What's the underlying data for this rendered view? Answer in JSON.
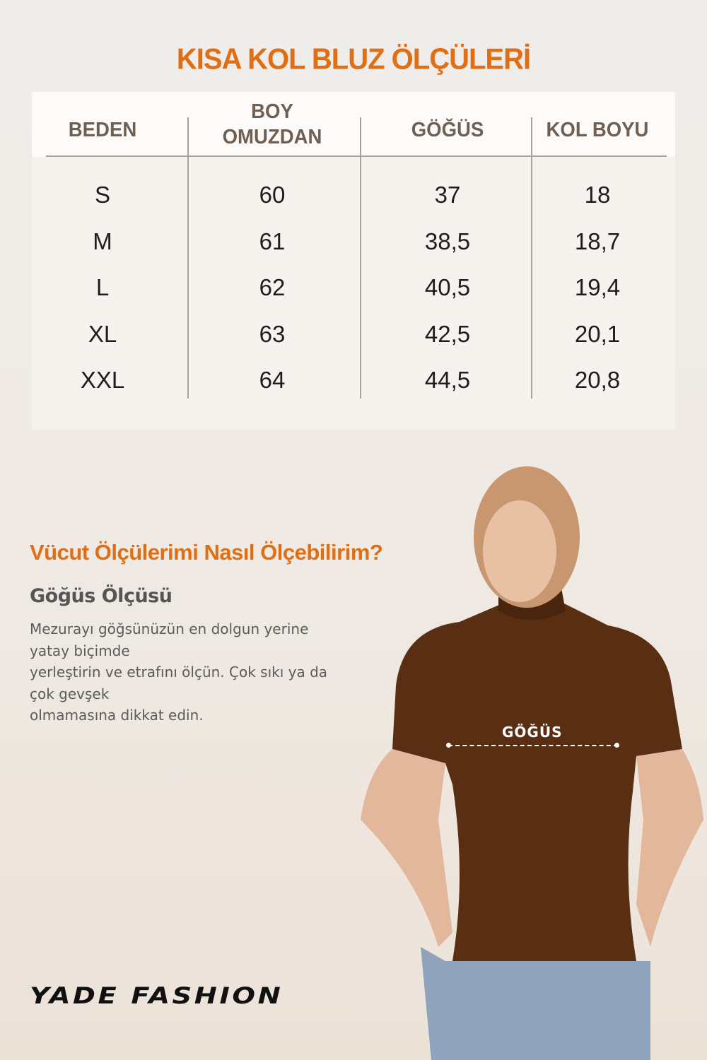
{
  "title": "KISA KOL BLUZ ÖLÇÜLERİ",
  "table": {
    "headers": [
      "BEDEN",
      "BOY\nOMUZDAN",
      "GÖĞÜS",
      "KOL BOYU"
    ],
    "rows": [
      [
        "S",
        "60",
        "37",
        "18"
      ],
      [
        "M",
        "61",
        "38,5",
        "18,7"
      ],
      [
        "L",
        "62",
        "40,5",
        "19,4"
      ],
      [
        "XL",
        "63",
        "42,5",
        "20,1"
      ],
      [
        "XXL",
        "64",
        "44,5",
        "20,8"
      ]
    ]
  },
  "guide": {
    "heading": "Vücut Ölçülerimi Nasıl Ölçebilirim?",
    "subheading": "Göğüs Ölçüsü",
    "text": "Mezurayı göğsünüzün en dolgun yerine\nyatay biçimde\nyerleştirin ve etrafını ölçün. Çok sıkı ya da\nçok gevşek\nolmamasına dikkat edin."
  },
  "photo": {
    "measure_label": "GÖĞÜS"
  },
  "brand": "YADE FASHION",
  "colors": {
    "accent": "#e06e14",
    "header_text": "#6e5f52",
    "shirt": "#5a2e12"
  }
}
